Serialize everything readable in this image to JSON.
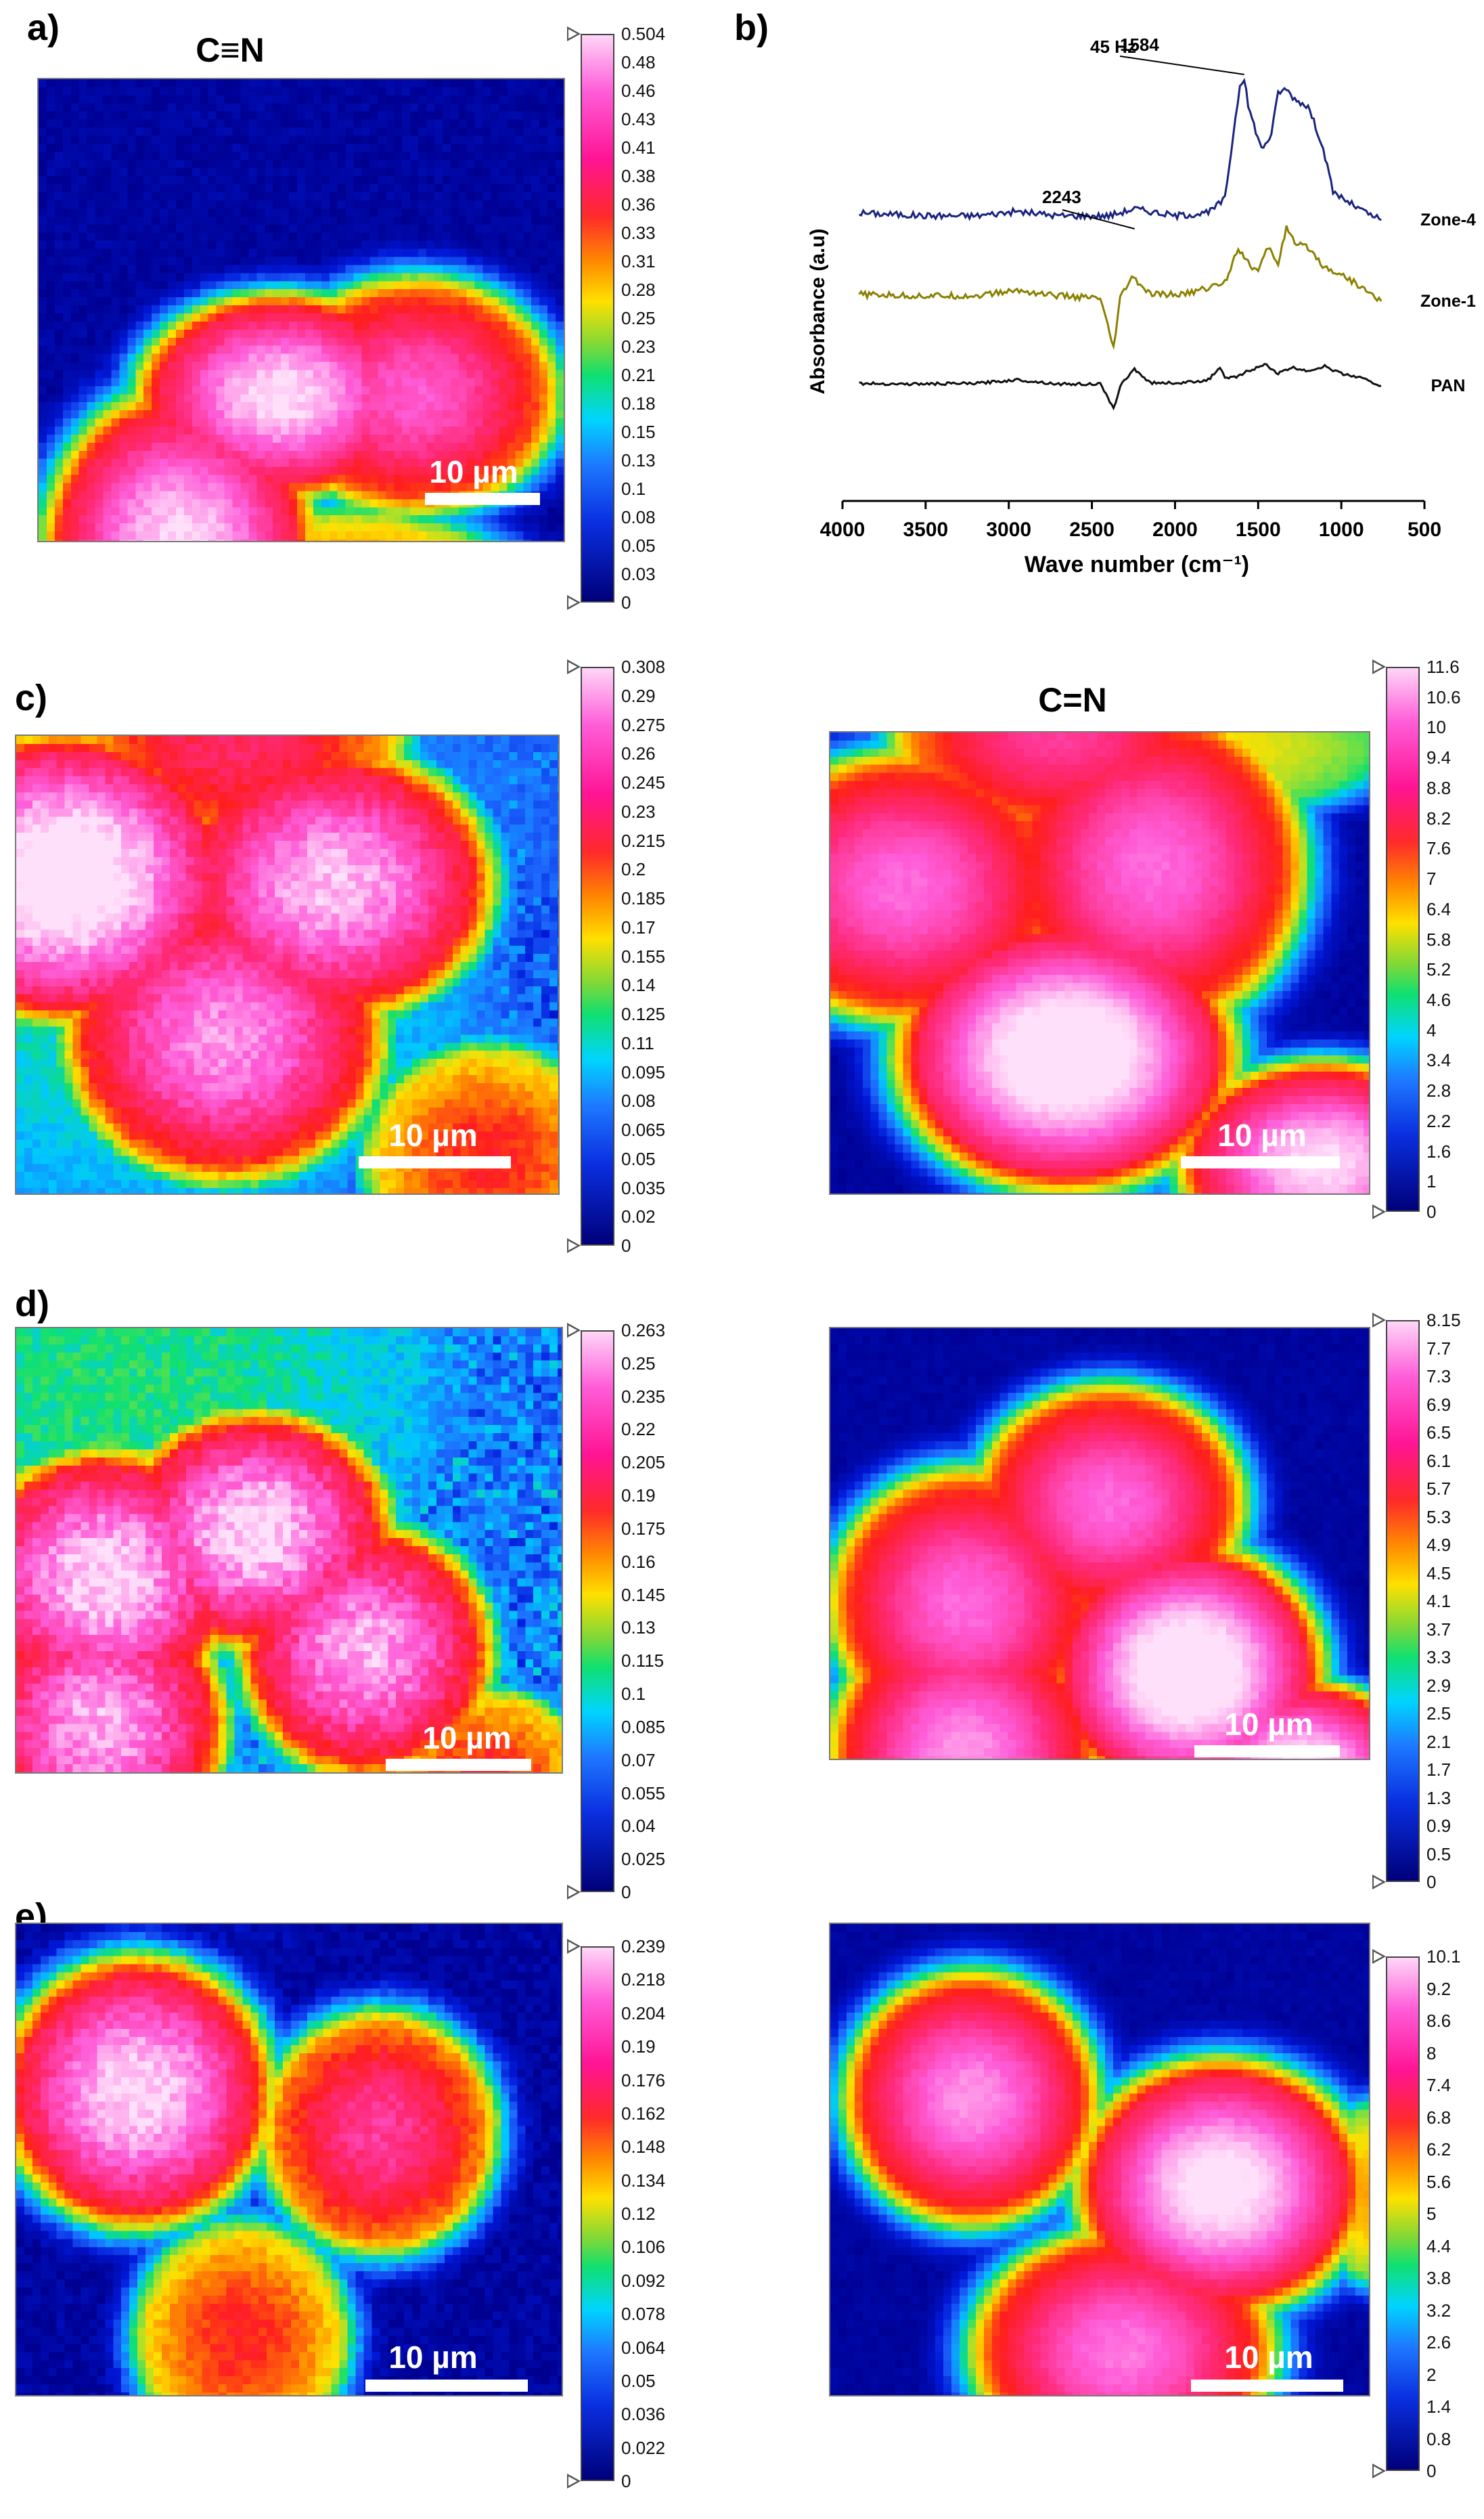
{
  "panel_labels": {
    "a": "a)",
    "b": "b)",
    "c": "c)",
    "d": "d)",
    "e": "e)"
  },
  "map_titles": {
    "a": "C≡N",
    "c_right": "C=N"
  },
  "scale_bar_label": "10 µm",
  "colors": {
    "background": "#000090",
    "accent_line_b": [
      "#1a237e",
      "#8b8000",
      "#111111"
    ]
  },
  "colorbars": {
    "a": [
      "0.504",
      "0.48",
      "0.46",
      "0.43",
      "0.41",
      "0.38",
      "0.36",
      "0.33",
      "0.31",
      "0.28",
      "0.25",
      "0.23",
      "0.21",
      "0.18",
      "0.15",
      "0.13",
      "0.1",
      "0.08",
      "0.05",
      "0.03",
      "0"
    ],
    "c_left": [
      "0.308",
      "0.29",
      "0.275",
      "0.26",
      "0.245",
      "0.23",
      "0.215",
      "0.2",
      "0.185",
      "0.17",
      "0.155",
      "0.14",
      "0.125",
      "0.11",
      "0.095",
      "0.08",
      "0.065",
      "0.05",
      "0.035",
      "0.02",
      "0"
    ],
    "c_right": [
      "11.6",
      "10.6",
      "10",
      "9.4",
      "8.8",
      "8.2",
      "7.6",
      "7",
      "6.4",
      "5.8",
      "5.2",
      "4.6",
      "4",
      "3.4",
      "2.8",
      "2.2",
      "1.6",
      "1",
      "0"
    ],
    "d_left": [
      "0.263",
      "0.25",
      "0.235",
      "0.22",
      "0.205",
      "0.19",
      "0.175",
      "0.16",
      "0.145",
      "0.13",
      "0.115",
      "0.1",
      "0.085",
      "0.07",
      "0.055",
      "0.04",
      "0.025",
      "0"
    ],
    "d_right": [
      "8.15",
      "7.7",
      "7.3",
      "6.9",
      "6.5",
      "6.1",
      "5.7",
      "5.3",
      "4.9",
      "4.5",
      "4.1",
      "3.7",
      "3.3",
      "2.9",
      "2.5",
      "2.1",
      "1.7",
      "1.3",
      "0.9",
      "0.5",
      "0"
    ],
    "e_left": [
      "0.239",
      "0.218",
      "0.204",
      "0.19",
      "0.176",
      "0.162",
      "0.148",
      "0.134",
      "0.12",
      "0.106",
      "0.092",
      "0.078",
      "0.064",
      "0.05",
      "0.036",
      "0.022",
      "0"
    ],
    "e_right": [
      "10.1",
      "9.2",
      "8.6",
      "8",
      "7.4",
      "6.8",
      "6.2",
      "5.6",
      "5",
      "4.4",
      "3.8",
      "3.2",
      "2.6",
      "2",
      "1.4",
      "0.8",
      "0"
    ]
  },
  "chart_data": {
    "type": "line",
    "title": "45 Hz",
    "xlabel": "Wave number (cm⁻¹)",
    "ylabel": "Absorbance (a.u)",
    "xlim": [
      4000,
      500
    ],
    "x_ticks": [
      "4000",
      "3500",
      "3000",
      "2500",
      "2000",
      "1500",
      "1000",
      "500"
    ],
    "annotations": [
      {
        "text": "2243",
        "x": 2243
      },
      {
        "text": "1584",
        "x": 1584
      }
    ],
    "series": [
      {
        "name": "Zone-4",
        "color": "#1a237e",
        "points": [
          [
            3900,
            0.05
          ],
          [
            3700,
            0.04
          ],
          [
            3500,
            0.03
          ],
          [
            3200,
            0.03
          ],
          [
            2950,
            0.06
          ],
          [
            2700,
            0.03
          ],
          [
            2400,
            0.03
          ],
          [
            2243,
            0.08
          ],
          [
            2000,
            0.03
          ],
          [
            1800,
            0.05
          ],
          [
            1700,
            0.15
          ],
          [
            1650,
            0.6
          ],
          [
            1610,
            0.95
          ],
          [
            1584,
            1.0
          ],
          [
            1560,
            0.8
          ],
          [
            1480,
            0.5
          ],
          [
            1420,
            0.6
          ],
          [
            1380,
            0.9
          ],
          [
            1330,
            0.92
          ],
          [
            1280,
            0.85
          ],
          [
            1200,
            0.8
          ],
          [
            1120,
            0.55
          ],
          [
            1050,
            0.2
          ],
          [
            950,
            0.12
          ],
          [
            850,
            0.05
          ],
          [
            760,
            0.0
          ]
        ]
      },
      {
        "name": "Zone-1",
        "color": "#8b8000",
        "points": [
          [
            3900,
            0.05
          ],
          [
            3600,
            0.04
          ],
          [
            3200,
            0.04
          ],
          [
            2950,
            0.08
          ],
          [
            2700,
            0.04
          ],
          [
            2450,
            0.02
          ],
          [
            2370,
            -0.35
          ],
          [
            2330,
            0.02
          ],
          [
            2260,
            0.18
          ],
          [
            2150,
            0.05
          ],
          [
            1950,
            0.05
          ],
          [
            1800,
            0.1
          ],
          [
            1700,
            0.14
          ],
          [
            1620,
            0.4
          ],
          [
            1560,
            0.28
          ],
          [
            1500,
            0.22
          ],
          [
            1440,
            0.4
          ],
          [
            1380,
            0.28
          ],
          [
            1330,
            0.55
          ],
          [
            1280,
            0.42
          ],
          [
            1200,
            0.4
          ],
          [
            1100,
            0.25
          ],
          [
            1000,
            0.2
          ],
          [
            900,
            0.12
          ],
          [
            760,
            0.0
          ]
        ]
      },
      {
        "name": "PAN",
        "color": "#111111",
        "points": [
          [
            3900,
            0.04
          ],
          [
            3600,
            0.03
          ],
          [
            3200,
            0.04
          ],
          [
            2950,
            0.1
          ],
          [
            2700,
            0.03
          ],
          [
            2450,
            0.03
          ],
          [
            2370,
            -0.38
          ],
          [
            2330,
            0.0
          ],
          [
            2244,
            0.28
          ],
          [
            2150,
            0.05
          ],
          [
            1950,
            0.05
          ],
          [
            1800,
            0.1
          ],
          [
            1730,
            0.3
          ],
          [
            1700,
            0.12
          ],
          [
            1620,
            0.15
          ],
          [
            1560,
            0.25
          ],
          [
            1450,
            0.35
          ],
          [
            1380,
            0.2
          ],
          [
            1300,
            0.3
          ],
          [
            1200,
            0.25
          ],
          [
            1100,
            0.32
          ],
          [
            1000,
            0.2
          ],
          [
            900,
            0.15
          ],
          [
            760,
            0.0
          ]
        ]
      }
    ]
  }
}
